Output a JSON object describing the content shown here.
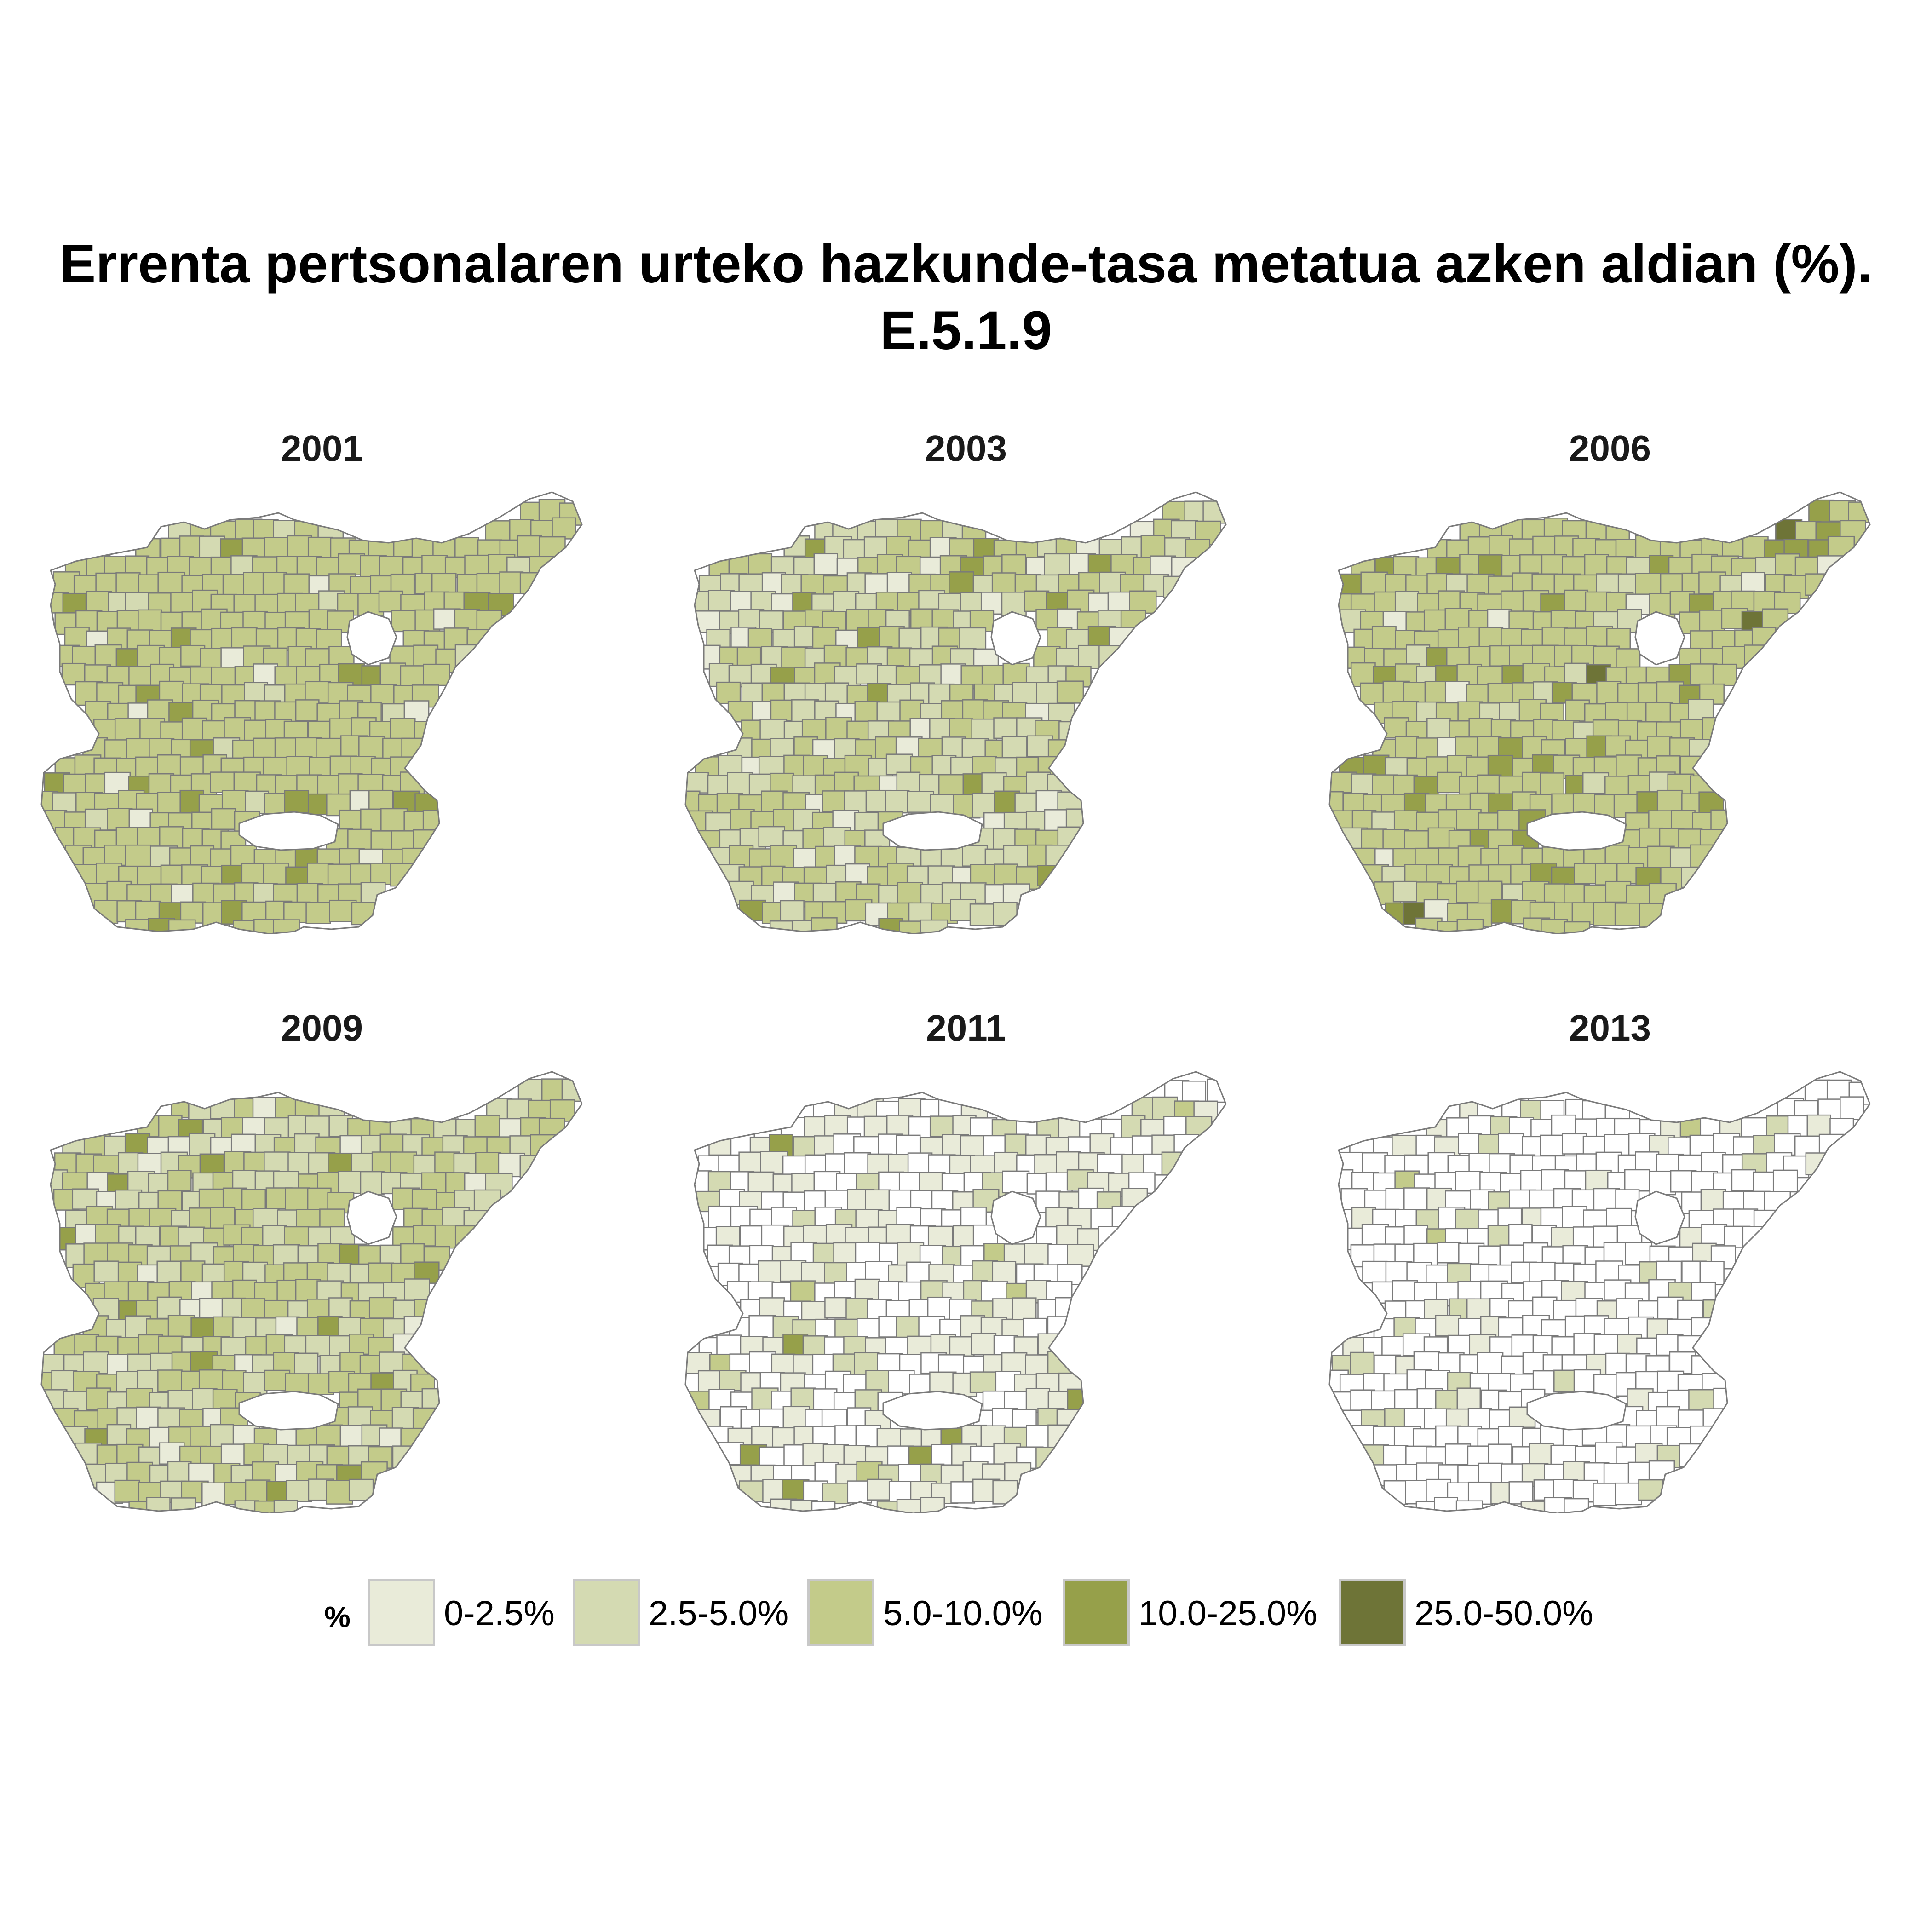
{
  "title": {
    "line1": "Errenta pertsonalaren urteko hazkunde-tasa metatua azken aldian (%).",
    "line2": "E.5.1.9"
  },
  "colors": {
    "none": "#ffffff",
    "border": "#7a7a7a",
    "class_0": "#e9ebd9",
    "class_1": "#d4dab2",
    "class_2": "#c3cb8a",
    "class_3": "#96a04a",
    "class_4": "#6e7437"
  },
  "panels": [
    {
      "year": "2001",
      "weights": [
        0.02,
        0.06,
        0.84,
        0.08,
        0.0
      ],
      "none": 0.0
    },
    {
      "year": "2003",
      "weights": [
        0.12,
        0.46,
        0.39,
        0.03,
        0.0
      ],
      "none": 0.0
    },
    {
      "year": "2006",
      "weights": [
        0.02,
        0.08,
        0.79,
        0.1,
        0.01
      ],
      "none": 0.0
    },
    {
      "year": "2009",
      "weights": [
        0.08,
        0.4,
        0.47,
        0.05,
        0.0
      ],
      "none": 0.0
    },
    {
      "year": "2011",
      "weights": [
        0.4,
        0.1,
        0.03,
        0.01,
        0.0
      ],
      "none": 0.46
    },
    {
      "year": "2013",
      "weights": [
        0.1,
        0.06,
        0.005,
        0.005,
        0.0
      ],
      "none": 0.83
    }
  ],
  "legend": {
    "title": "%",
    "items": [
      {
        "label": "0-2.5%",
        "color": "#e9ebd9"
      },
      {
        "label": "2.5-5.0%",
        "color": "#d4dab2"
      },
      {
        "label": "5.0-10.0%",
        "color": "#c3cb8a"
      },
      {
        "label": "10.0-25.0%",
        "color": "#96a04a"
      },
      {
        "label": "25.0-50.0%",
        "color": "#6e7437"
      }
    ]
  }
}
